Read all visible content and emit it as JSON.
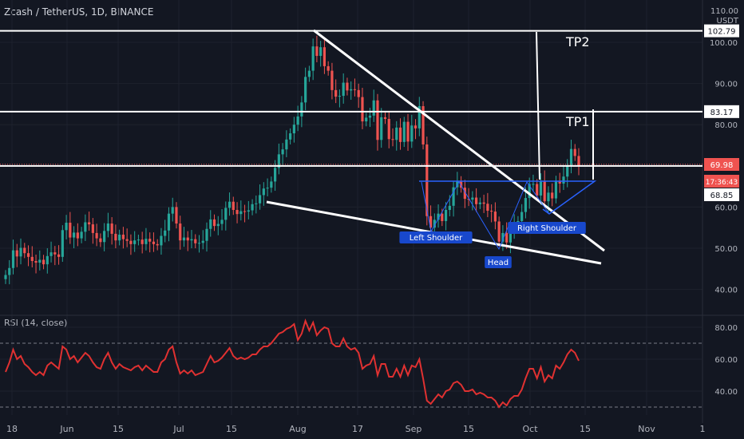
{
  "header": {
    "symbol_line": "Zcash / TetherUS, 1D, BINANCE",
    "rsi_label": "RSI (14, close)",
    "unit_top": "110.00",
    "unit": "USDT"
  },
  "colors": {
    "background": "#131722",
    "up_candle": "#26a69a",
    "down_candle": "#ef5350",
    "rsi_line": "#e03131",
    "drawings": "#ffffff",
    "pattern": "#2962ff",
    "price_tag": "#ef5350"
  },
  "chart_data": [
    {
      "type": "candlestick",
      "symbol": "Zcash / TetherUS",
      "interval": "1D",
      "exchange": "BINANCE",
      "y_ticks": [
        40,
        50,
        60,
        70,
        80,
        90,
        100
      ],
      "y_tick_labels": [
        "40.00",
        "50.00",
        "60.00",
        "70.00",
        "80.00",
        "90.00",
        "100.00"
      ],
      "ylim": [
        36,
        110
      ],
      "x_labels": [
        "18",
        "Jun",
        "15",
        "Jul",
        "15",
        "Aug",
        "17",
        "Sep",
        "15",
        "Oct",
        "15",
        "Nov",
        "1"
      ],
      "price_levels": [
        {
          "label": "102.79",
          "value": 102.79
        },
        {
          "label": "83.17",
          "value": 83.17
        },
        {
          "label": "69.98",
          "value": 69.98
        }
      ],
      "current_price": {
        "price": "69.98",
        "countdown": "17:36:43"
      },
      "neckline": {
        "label": "68.85",
        "value": 68.85
      },
      "targets": [
        {
          "label": "TP1",
          "value": 83.17
        },
        {
          "label": "TP2",
          "value": 102.79
        }
      ],
      "pattern_labels": [
        "Left Shoulder",
        "Head",
        "Right Shoulder"
      ],
      "closes": [
        43.5,
        45.2,
        49.5,
        48.0,
        50.1,
        48.8,
        47.9,
        46.9,
        46.5,
        47.2,
        46.1,
        48.1,
        49.0,
        48.5,
        47.9,
        54.4,
        56.2,
        52.6,
        53.8,
        52.4,
        54.0,
        56.3,
        55.8,
        53.7,
        52.4,
        51.5,
        54.2,
        56.0,
        53.5,
        51.9,
        53.3,
        52.2,
        51.8,
        51.0,
        51.9,
        52.1,
        51.0,
        52.3,
        51.6,
        51.0,
        50.7,
        53.0,
        54.3,
        58.4,
        60.0,
        56.0,
        51.9,
        52.6,
        51.9,
        52.2,
        51.2,
        51.3,
        51.8,
        54.7,
        57.0,
        55.4,
        55.9,
        56.9,
        59.8,
        61.3,
        59.3,
        58.3,
        59.0,
        58.9,
        59.2,
        60.7,
        60.9,
        62.9,
        64.5,
        64.7,
        66.2,
        69.5,
        72.8,
        74.0,
        76.4,
        77.9,
        80.0,
        82.0,
        85.4,
        91.6,
        93.1,
        99.0,
        96.7,
        98.8,
        94.2,
        93.1,
        88.4,
        86.8,
        87.0,
        90.2,
        88.3,
        88.6,
        88.4,
        86.7,
        80.8,
        81.7,
        82.2,
        85.9,
        76.3,
        81.8,
        81.4,
        76.5,
        76.3,
        79.3,
        75.8,
        80.7,
        75.9,
        79.8,
        79.1,
        84.5,
        75.2,
        57.8,
        55.0,
        56.9,
        58.4,
        56.6,
        59.3,
        60.3,
        64.8,
        66.3,
        64.7,
        62.0,
        61.8,
        62.3,
        60.7,
        61.1,
        60.8,
        59.1,
        58.9,
        56.5,
        51.6,
        53.7,
        51.4,
        54.2,
        56.0,
        56.6,
        58.8,
        62.2,
        65.6,
        65.6,
        62.8,
        66.3,
        61.4,
        63.5,
        62.1,
        66.4,
        65.7,
        67.4,
        70.1,
        74.1,
        72.4,
        69.98
      ],
      "rsi": {
        "period": 14,
        "source": "close",
        "y_ticks": [
          40,
          60,
          80
        ],
        "y_tick_labels": [
          "40.00",
          "60.00",
          "80.00"
        ],
        "bands": [
          30,
          70
        ],
        "ylim": [
          26,
          88
        ],
        "values": [
          52,
          58,
          66,
          60,
          62,
          57,
          55,
          52,
          50,
          52,
          50,
          56,
          58,
          56,
          54,
          68,
          66,
          60,
          62,
          58,
          61,
          64,
          62,
          58,
          55,
          54,
          60,
          64,
          58,
          54,
          57,
          55,
          54,
          53,
          55,
          56,
          53,
          56,
          54,
          52,
          52,
          58,
          60,
          66,
          68,
          58,
          51,
          53,
          51,
          53,
          50,
          51,
          52,
          57,
          62,
          58,
          59,
          61,
          64,
          67,
          62,
          60,
          61,
          60,
          61,
          63,
          63,
          66,
          68,
          68,
          70,
          73,
          76,
          77,
          79,
          80,
          82,
          72,
          76,
          84,
          78,
          83,
          75,
          78,
          80,
          79,
          70,
          68,
          68,
          73,
          68,
          66,
          67,
          64,
          54,
          56,
          57,
          62,
          50,
          57,
          57,
          49,
          49,
          54,
          49,
          56,
          50,
          56,
          55,
          60,
          48,
          34,
          32,
          35,
          38,
          36,
          40,
          41,
          45,
          46,
          44,
          40,
          40,
          41,
          38,
          39,
          38,
          36,
          36,
          34,
          30,
          33,
          31,
          35,
          37,
          37,
          41,
          48,
          54,
          54,
          48,
          55,
          46,
          50,
          48,
          56,
          54,
          58,
          63,
          66,
          64,
          59
        ]
      }
    }
  ]
}
